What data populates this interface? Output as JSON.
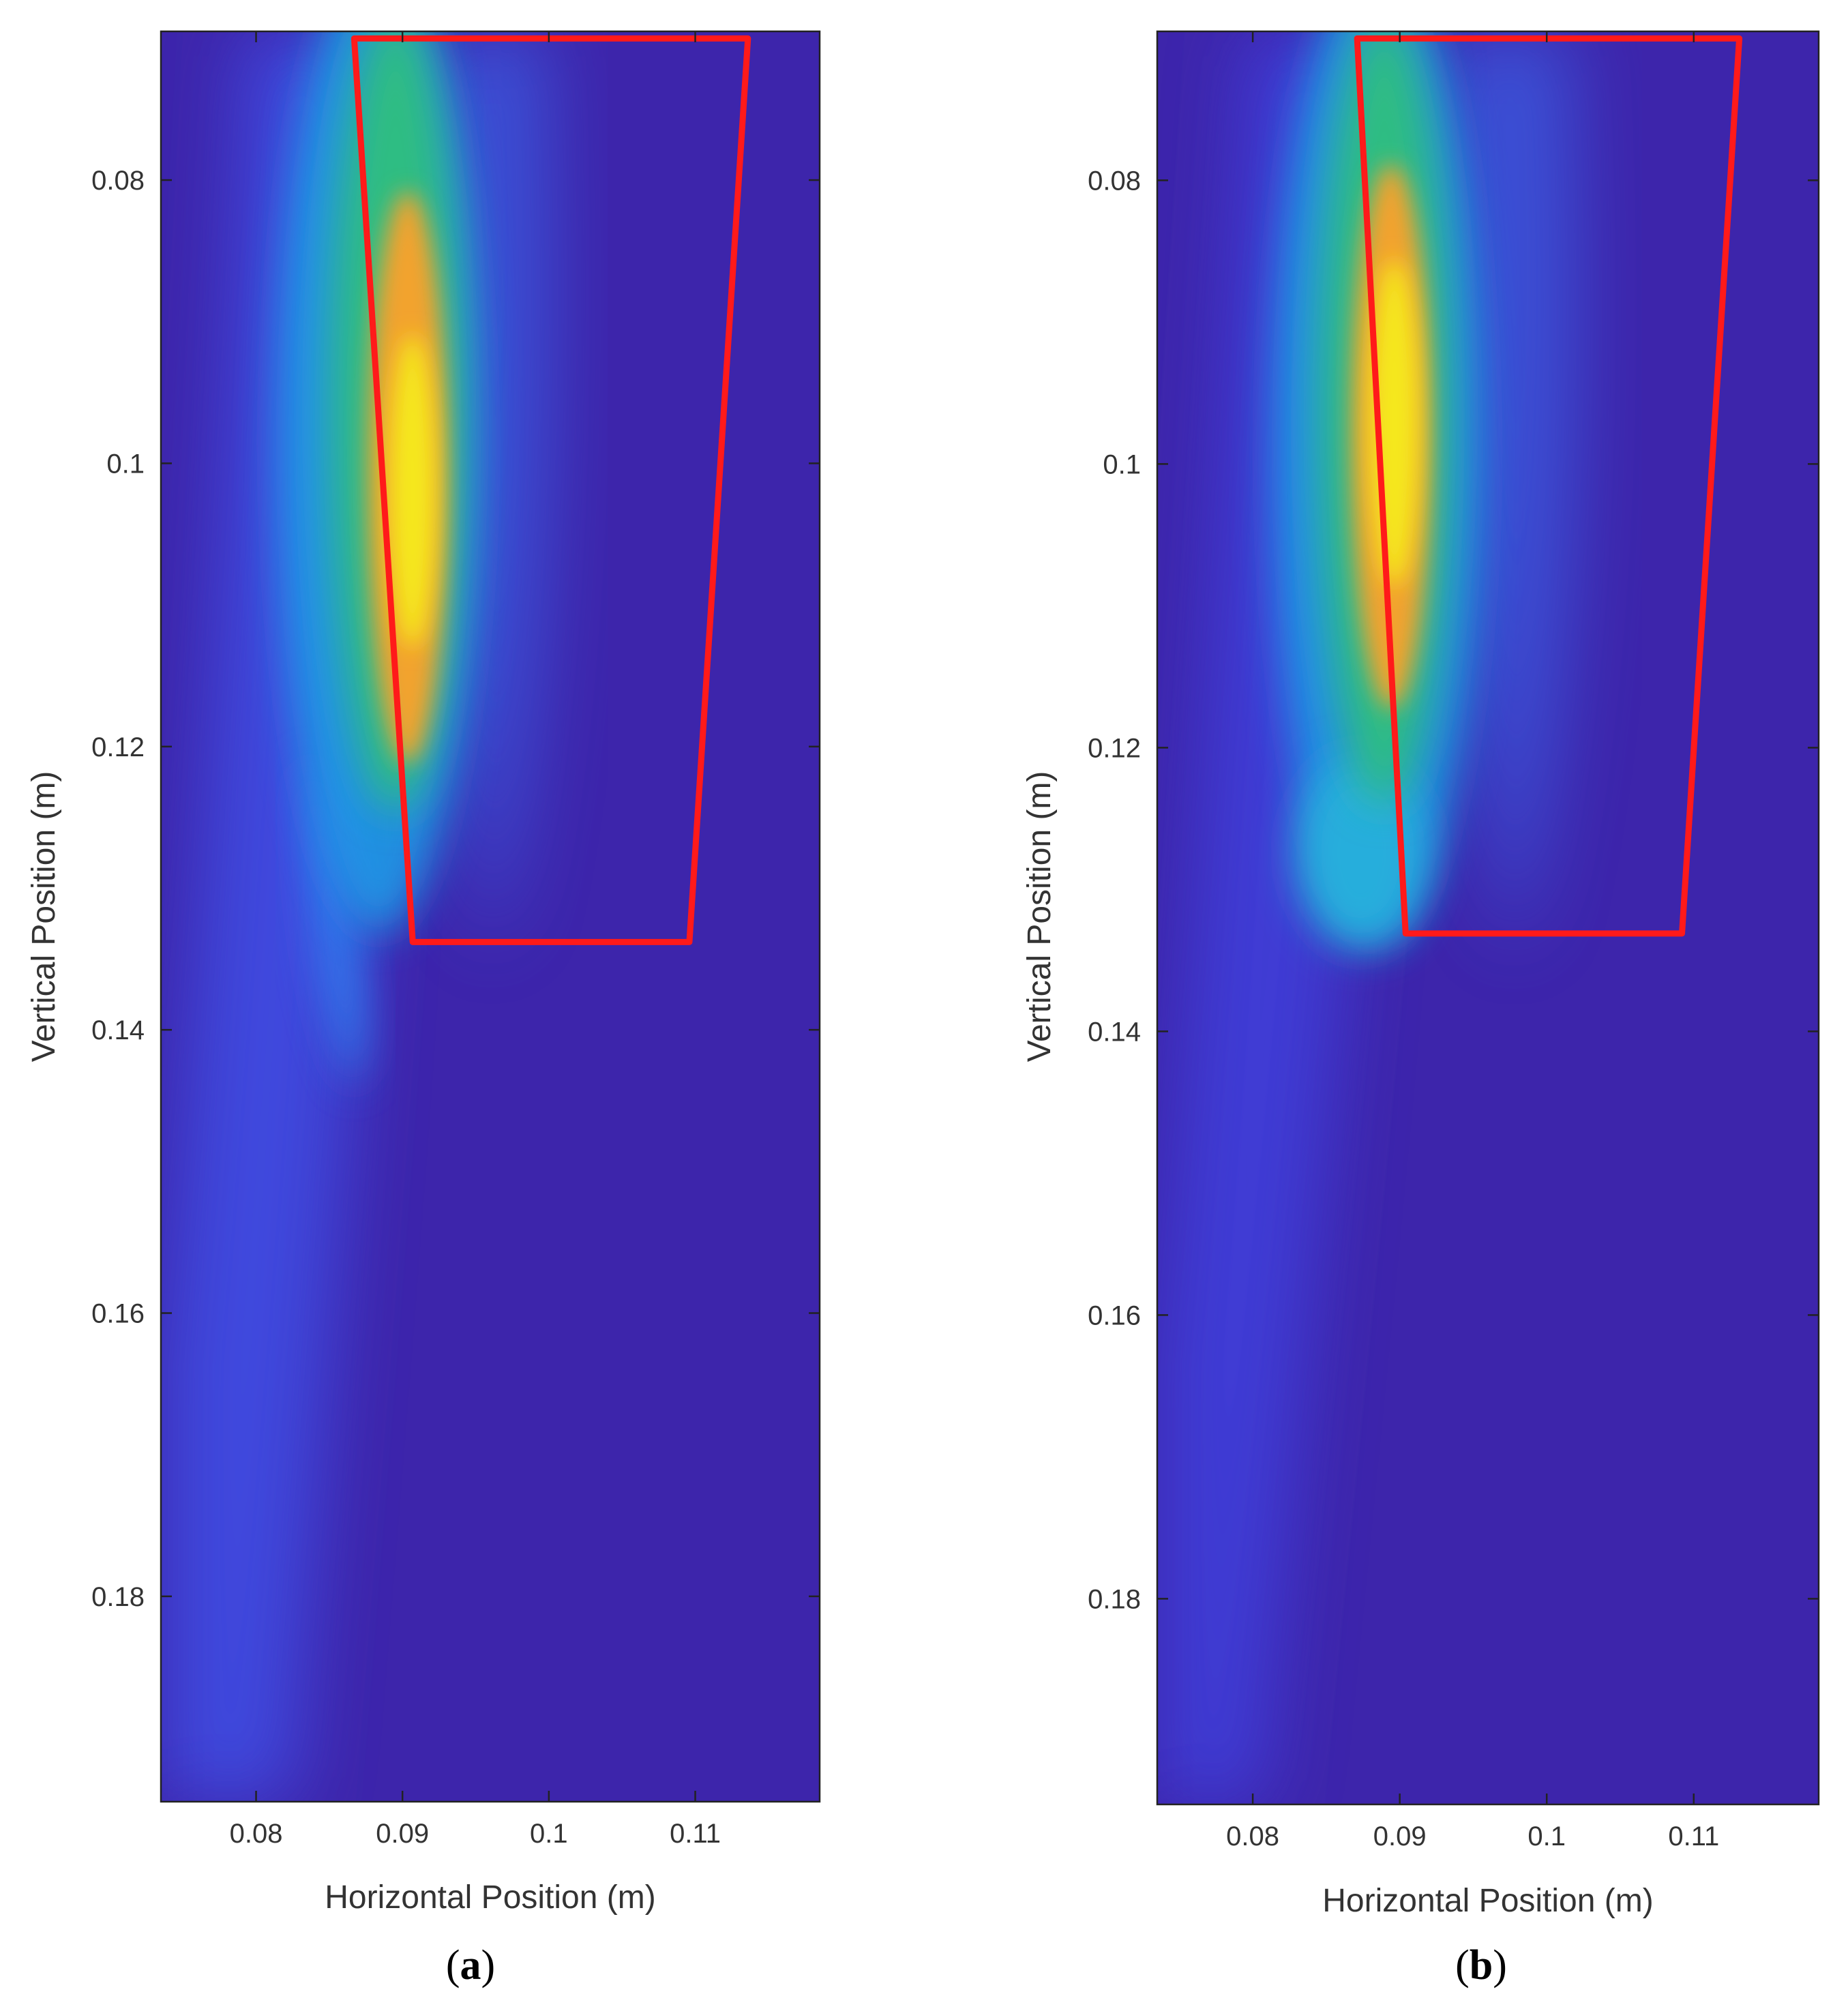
{
  "chart_data": [
    {
      "type": "heatmap",
      "panel_label": "a",
      "xlabel": "Horizontal Position (m)",
      "ylabel": "Vertical Position (m)",
      "xlim": [
        0.0735,
        0.1185
      ],
      "ylim": [
        0.0695,
        0.1945
      ],
      "y_reversed": true,
      "x_ticks": [
        0.08,
        0.09,
        0.1,
        0.11
      ],
      "x_tick_labels": [
        "0.08",
        "0.09",
        "0.1",
        "0.11"
      ],
      "y_ticks": [
        0.08,
        0.1,
        0.12,
        0.14,
        0.16,
        0.18
      ],
      "y_tick_labels": [
        "0.08",
        "0.1",
        "0.12",
        "0.14",
        "0.16",
        "0.18"
      ],
      "colormap": "parula",
      "grid": false,
      "overlay_polygon": {
        "color": "#ff1a1a",
        "points": [
          [
            0.0867,
            0.07
          ],
          [
            0.1136,
            0.07
          ],
          [
            0.1096,
            0.1338
          ],
          [
            0.0907,
            0.1338
          ]
        ]
      },
      "hotspot": {
        "x": 0.0895,
        "y": 0.1,
        "peak": "yellow"
      }
    },
    {
      "type": "heatmap",
      "panel_label": "b",
      "xlabel": "Horizontal Position (m)",
      "ylabel": "Vertical Position (m)",
      "xlim": [
        0.0735,
        0.1185
      ],
      "ylim": [
        0.0695,
        0.1945
      ],
      "y_reversed": true,
      "x_ticks": [
        0.08,
        0.09,
        0.1,
        0.11
      ],
      "x_tick_labels": [
        "0.08",
        "0.09",
        "0.1",
        "0.11"
      ],
      "y_ticks": [
        0.08,
        0.1,
        0.12,
        0.14,
        0.16,
        0.18
      ],
      "y_tick_labels": [
        "0.08",
        "0.1",
        "0.12",
        "0.14",
        "0.16",
        "0.18"
      ],
      "colormap": "parula",
      "grid": false,
      "overlay_polygon": {
        "color": "#ff1a1a",
        "points": [
          [
            0.0871,
            0.07
          ],
          [
            0.1131,
            0.07
          ],
          [
            0.1092,
            0.1331
          ],
          [
            0.0904,
            0.1331
          ]
        ]
      },
      "hotspot": {
        "x": 0.0887,
        "y": 0.099,
        "peak": "yellow"
      }
    }
  ]
}
